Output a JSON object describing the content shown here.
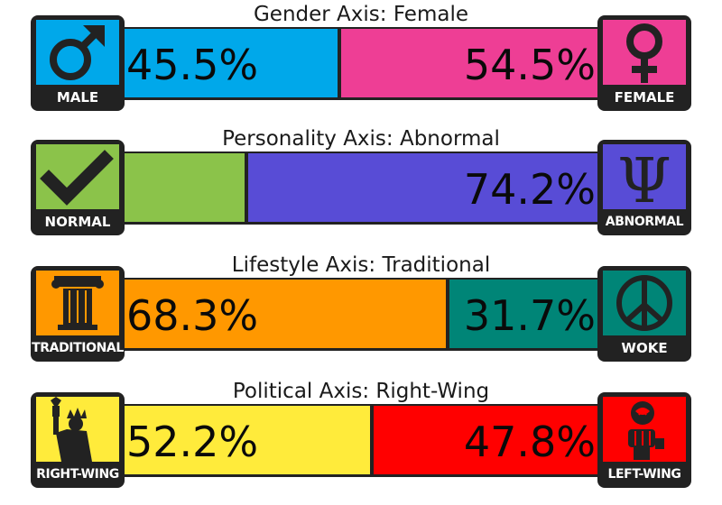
{
  "axes": [
    {
      "title": "Gender Axis: Female",
      "left": {
        "label": "MALE",
        "icon": "male-symbol-icon",
        "color": "#00a8ea",
        "percent": 45.5,
        "percent_text": "45.5%"
      },
      "right": {
        "label": "FEMALE",
        "icon": "female-symbol-icon",
        "color": "#ee3e95",
        "percent": 54.5,
        "percent_text": "54.5%"
      }
    },
    {
      "title": "Personality Axis: Abnormal",
      "left": {
        "label": "NORMAL",
        "icon": "checkmark-icon",
        "color": "#8bc34a",
        "percent": 25.8,
        "percent_text": ""
      },
      "right": {
        "label": "ABNORMAL",
        "icon": "psi-icon",
        "color": "#584cd6",
        "percent": 74.2,
        "percent_text": "74.2%"
      }
    },
    {
      "title": "Lifestyle Axis: Traditional",
      "left": {
        "label": "TRADITIONAL",
        "icon": "column-icon",
        "color": "#ff9800",
        "percent": 68.3,
        "percent_text": "68.3%"
      },
      "right": {
        "label": "WOKE",
        "icon": "peace-icon",
        "color": "#008577",
        "percent": 31.7,
        "percent_text": "31.7%"
      }
    },
    {
      "title": "Political Axis: Right-Wing",
      "left": {
        "label": "RIGHT-WING",
        "icon": "statue-of-liberty-icon",
        "color": "#ffeb3b",
        "percent": 52.2,
        "percent_text": "52.2%"
      },
      "right": {
        "label": "LEFT-WING",
        "icon": "rose-fist-icon",
        "color": "#ff0000",
        "percent": 47.8,
        "percent_text": "47.8%"
      }
    }
  ]
}
